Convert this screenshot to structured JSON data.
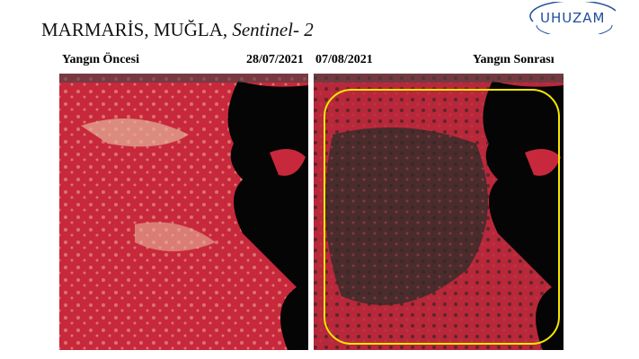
{
  "title": {
    "main": "MARMARİS, MUĞLA,",
    "italic": "Sentinel- 2"
  },
  "logo": "UHUZAM",
  "before": {
    "label": "Yangın Öncesi",
    "date": "28/07/2021"
  },
  "after": {
    "label": "Yangın Sonrası",
    "date": "07/08/2021"
  }
}
